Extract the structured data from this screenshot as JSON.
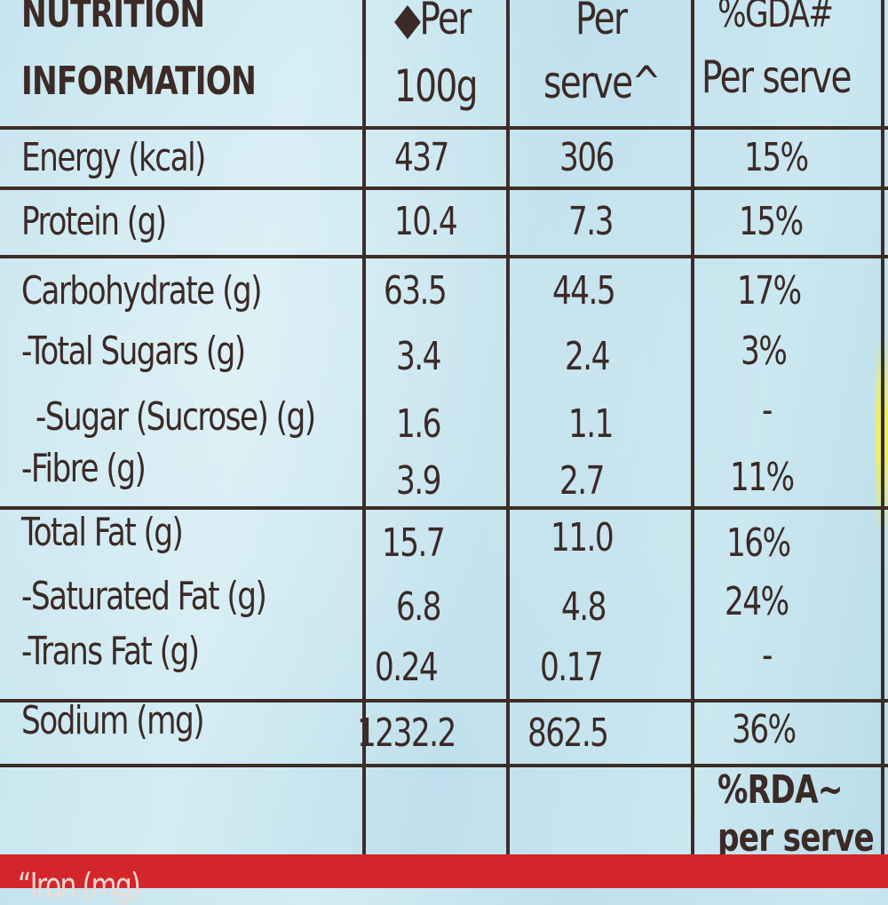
{
  "table": {
    "headers": {
      "label_line1": "NUTRITION",
      "label_line2": "INFORMATION",
      "per100_line1": "◆Per",
      "per100_line2": "100g",
      "perserve_line1": "Per",
      "perserve_line2": "serve^",
      "gda_line1": "%GDA#",
      "gda_line2": "Per serve"
    },
    "rows": [
      {
        "label": "Energy (kcal)",
        "per100": "437",
        "perserve": "306",
        "gda": "15%"
      },
      {
        "label": "Protein (g)",
        "per100": "10.4",
        "perserve": "7.3",
        "gda": "15%"
      },
      {
        "label": "Carbohydrate (g)",
        "per100": "63.5",
        "perserve": "44.5",
        "gda": "17%"
      },
      {
        "label": "-Total Sugars (g)",
        "per100": "3.4",
        "perserve": "2.4",
        "gda": "3%"
      },
      {
        "label": "-Sugar (Sucrose) (g)",
        "per100": "1.6",
        "perserve": "1.1",
        "gda": "-"
      },
      {
        "label": "-Fibre (g)",
        "per100": "3.9",
        "perserve": "2.7",
        "gda": "11%"
      },
      {
        "label": "Total Fat (g)",
        "per100": "15.7",
        "perserve": "11.0",
        "gda": "16%"
      },
      {
        "label": "-Saturated Fat (g)",
        "per100": "6.8",
        "perserve": "4.8",
        "gda": "24%"
      },
      {
        "label": "-Trans Fat (g)",
        "per100": "0.24",
        "perserve": "0.17",
        "gda": "-"
      },
      {
        "label": "Sodium (mg)",
        "per100": "1232.2",
        "perserve": "862.5",
        "gda": "36%"
      }
    ],
    "rda_header_line1": "%RDA~",
    "rda_header_line2": "per serve",
    "partial_row_label": "“Iron (mg)"
  },
  "colors": {
    "background": "#c4e3ee",
    "ink": "#3b2a26",
    "band": "#d3262a"
  }
}
